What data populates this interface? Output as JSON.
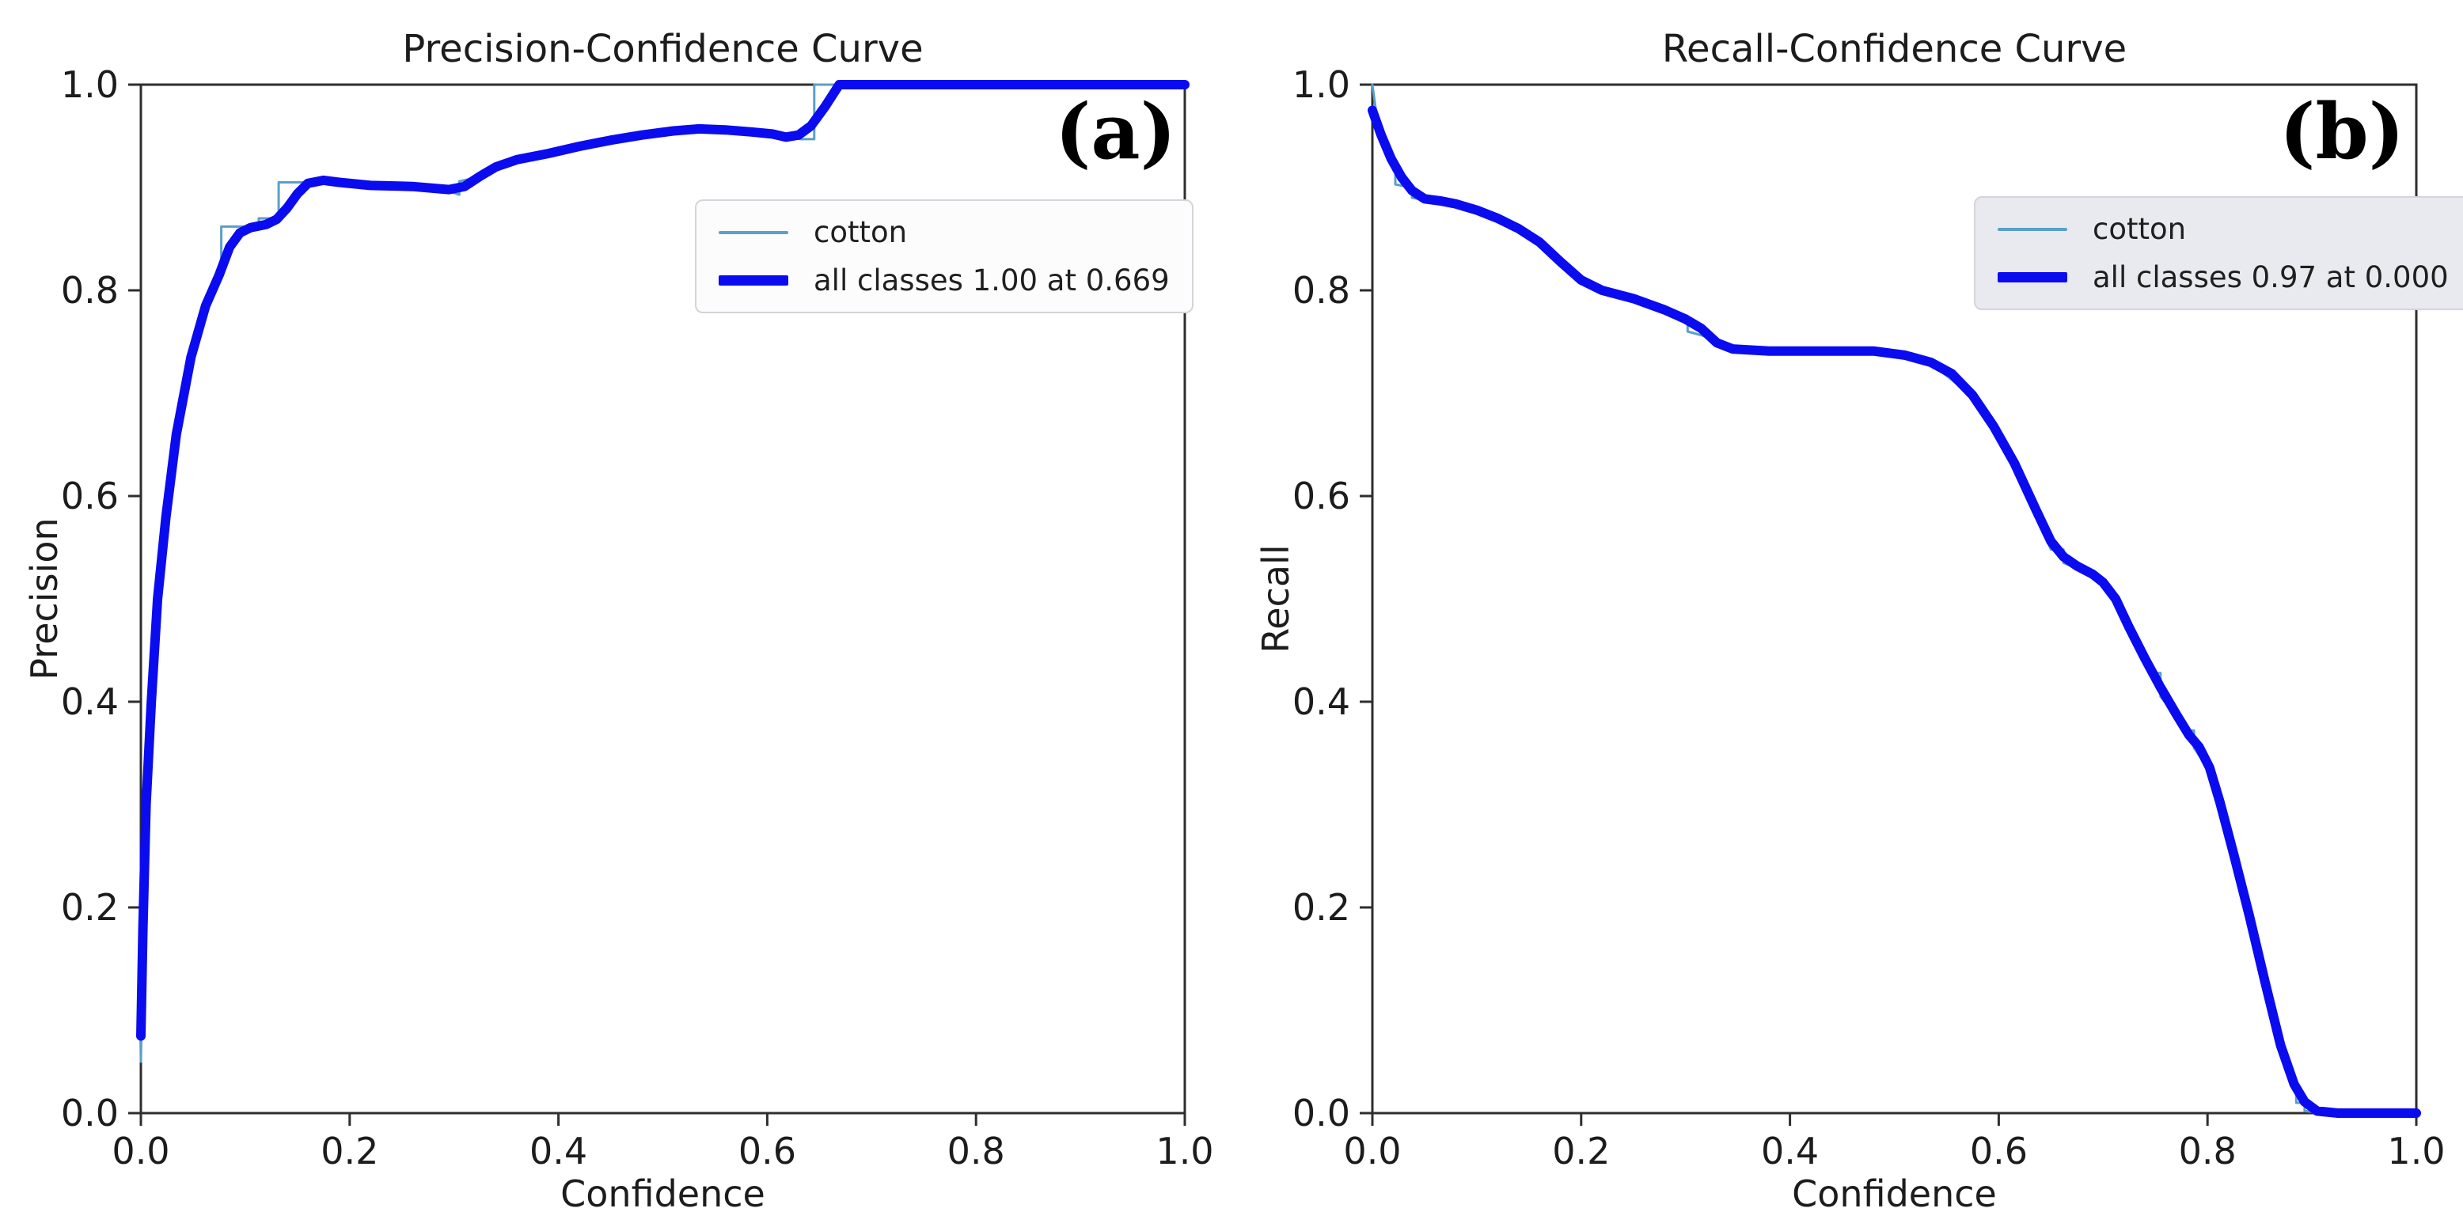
{
  "figure": {
    "background": "#ffffff"
  },
  "colors": {
    "all_classes_line": "#0b0bf0",
    "class_line": "#5aa0c8",
    "spine": "#2e2e2e",
    "legend_bg_a": "#fcfcfc",
    "legend_bg_b": "#e9e9f0",
    "legend_border": "#d4d4da"
  },
  "chart_data": [
    {
      "type": "line",
      "panel_label": "(a)",
      "title": "Precision-Confidence Curve",
      "xlabel": "Confidence",
      "ylabel": "Precision",
      "xlim": [
        0.0,
        1.0
      ],
      "ylim": [
        0.0,
        1.0
      ],
      "grid": false,
      "x_ticks": [
        0.0,
        0.2,
        0.4,
        0.6,
        0.8,
        1.0
      ],
      "x_tick_labels": [
        "0.0",
        "0.2",
        "0.4",
        "0.6",
        "0.8",
        "1.0"
      ],
      "y_ticks": [
        0.0,
        0.2,
        0.4,
        0.6,
        0.8,
        1.0
      ],
      "y_tick_labels": [
        "0.0",
        "0.2",
        "0.4",
        "0.6",
        "0.8",
        "1.0"
      ],
      "legend": {
        "position": "upper-right-inset",
        "bg": "#fcfcfc",
        "border": "#d4d4da",
        "items": [
          {
            "label": "cotton",
            "series": 0
          },
          {
            "label": "all classes 1.00 at 0.669",
            "series": 1
          }
        ]
      },
      "series": [
        {
          "name": "cotton",
          "color": "#5aa0c8",
          "style": "thin",
          "points": [
            [
              0.0,
              0.05
            ],
            [
              0.003,
              0.25
            ],
            [
              0.006,
              0.37
            ],
            [
              0.012,
              0.46
            ],
            [
              0.02,
              0.55
            ],
            [
              0.03,
              0.63
            ],
            [
              0.045,
              0.71
            ],
            [
              0.06,
              0.77
            ],
            [
              0.072,
              0.805
            ],
            [
              0.077,
              0.818
            ],
            [
              0.077,
              0.862
            ],
            [
              0.113,
              0.862
            ],
            [
              0.113,
              0.87
            ],
            [
              0.132,
              0.87
            ],
            [
              0.132,
              0.905
            ],
            [
              0.155,
              0.905
            ],
            [
              0.165,
              0.907
            ],
            [
              0.19,
              0.904
            ],
            [
              0.24,
              0.901
            ],
            [
              0.29,
              0.898
            ],
            [
              0.305,
              0.893
            ],
            [
              0.305,
              0.906
            ],
            [
              0.318,
              0.909
            ],
            [
              0.33,
              0.916
            ],
            [
              0.36,
              0.927
            ],
            [
              0.4,
              0.936
            ],
            [
              0.45,
              0.947
            ],
            [
              0.5,
              0.955
            ],
            [
              0.535,
              0.957
            ],
            [
              0.58,
              0.955
            ],
            [
              0.61,
              0.95
            ],
            [
              0.632,
              0.947
            ],
            [
              0.645,
              0.947
            ],
            [
              0.645,
              1.0
            ],
            [
              1.0,
              1.0
            ]
          ]
        },
        {
          "name": "all classes",
          "color": "#0b0bf0",
          "style": "thick",
          "points": [
            [
              0.0,
              0.075
            ],
            [
              0.002,
              0.18
            ],
            [
              0.005,
              0.3
            ],
            [
              0.01,
              0.4
            ],
            [
              0.016,
              0.5
            ],
            [
              0.024,
              0.58
            ],
            [
              0.034,
              0.66
            ],
            [
              0.048,
              0.735
            ],
            [
              0.062,
              0.785
            ],
            [
              0.075,
              0.815
            ],
            [
              0.085,
              0.842
            ],
            [
              0.095,
              0.856
            ],
            [
              0.105,
              0.861
            ],
            [
              0.12,
              0.864
            ],
            [
              0.13,
              0.869
            ],
            [
              0.14,
              0.88
            ],
            [
              0.15,
              0.894
            ],
            [
              0.16,
              0.904
            ],
            [
              0.175,
              0.907
            ],
            [
              0.19,
              0.905
            ],
            [
              0.22,
              0.902
            ],
            [
              0.26,
              0.901
            ],
            [
              0.295,
              0.898
            ],
            [
              0.31,
              0.901
            ],
            [
              0.325,
              0.911
            ],
            [
              0.34,
              0.92
            ],
            [
              0.36,
              0.927
            ],
            [
              0.39,
              0.933
            ],
            [
              0.42,
              0.94
            ],
            [
              0.45,
              0.946
            ],
            [
              0.48,
              0.951
            ],
            [
              0.51,
              0.955
            ],
            [
              0.535,
              0.957
            ],
            [
              0.56,
              0.956
            ],
            [
              0.585,
              0.954
            ],
            [
              0.605,
              0.952
            ],
            [
              0.618,
              0.949
            ],
            [
              0.63,
              0.951
            ],
            [
              0.642,
              0.96
            ],
            [
              0.655,
              0.978
            ],
            [
              0.669,
              1.0
            ],
            [
              1.0,
              1.0
            ]
          ]
        }
      ]
    },
    {
      "type": "line",
      "panel_label": "(b)",
      "title": "Recall-Confidence Curve",
      "xlabel": "Confidence",
      "ylabel": "Recall",
      "xlim": [
        0.0,
        1.0
      ],
      "ylim": [
        0.0,
        1.0
      ],
      "grid": false,
      "x_ticks": [
        0.0,
        0.2,
        0.4,
        0.6,
        0.8,
        1.0
      ],
      "x_tick_labels": [
        "0.0",
        "0.2",
        "0.4",
        "0.6",
        "0.8",
        "1.0"
      ],
      "y_ticks": [
        0.0,
        0.2,
        0.4,
        0.6,
        0.8,
        1.0
      ],
      "y_tick_labels": [
        "0.0",
        "0.2",
        "0.4",
        "0.6",
        "0.8",
        "1.0"
      ],
      "legend": {
        "position": "upper-right-inset",
        "bg": "#e9e9f0",
        "border": "#d4d4da",
        "items": [
          {
            "label": "cotton",
            "series": 0
          },
          {
            "label": "all classes 0.97 at 0.000",
            "series": 1
          }
        ]
      },
      "series": [
        {
          "name": "cotton",
          "color": "#5aa0c8",
          "style": "thin",
          "points": [
            [
              0.0,
              1.0
            ],
            [
              0.004,
              0.97
            ],
            [
              0.008,
              0.955
            ],
            [
              0.018,
              0.932
            ],
            [
              0.022,
              0.915
            ],
            [
              0.022,
              0.903
            ],
            [
              0.038,
              0.9
            ],
            [
              0.038,
              0.89
            ],
            [
              0.05,
              0.888
            ],
            [
              0.08,
              0.884
            ],
            [
              0.12,
              0.87
            ],
            [
              0.16,
              0.846
            ],
            [
              0.19,
              0.818
            ],
            [
              0.22,
              0.8
            ],
            [
              0.26,
              0.789
            ],
            [
              0.295,
              0.775
            ],
            [
              0.302,
              0.77
            ],
            [
              0.302,
              0.76
            ],
            [
              0.32,
              0.755
            ],
            [
              0.332,
              0.747
            ],
            [
              0.345,
              0.74
            ],
            [
              0.38,
              0.741
            ],
            [
              0.48,
              0.741
            ],
            [
              0.535,
              0.729
            ],
            [
              0.575,
              0.697
            ],
            [
              0.615,
              0.63
            ],
            [
              0.645,
              0.56
            ],
            [
              0.65,
              0.548
            ],
            [
              0.662,
              0.548
            ],
            [
              0.662,
              0.535
            ],
            [
              0.68,
              0.528
            ],
            [
              0.7,
              0.515
            ],
            [
              0.725,
              0.47
            ],
            [
              0.748,
              0.428
            ],
            [
              0.755,
              0.428
            ],
            [
              0.755,
              0.405
            ],
            [
              0.77,
              0.386
            ],
            [
              0.78,
              0.372
            ],
            [
              0.787,
              0.372
            ],
            [
              0.787,
              0.355
            ],
            [
              0.802,
              0.333
            ],
            [
              0.825,
              0.25
            ],
            [
              0.845,
              0.175
            ],
            [
              0.862,
              0.098
            ],
            [
              0.875,
              0.05
            ],
            [
              0.885,
              0.025
            ],
            [
              0.885,
              0.01
            ],
            [
              0.893,
              0.01
            ],
            [
              0.893,
              0.002
            ],
            [
              0.915,
              0.0
            ],
            [
              1.0,
              0.0
            ]
          ]
        },
        {
          "name": "all classes",
          "color": "#0b0bf0",
          "style": "thick",
          "points": [
            [
              0.0,
              0.975
            ],
            [
              0.008,
              0.952
            ],
            [
              0.018,
              0.928
            ],
            [
              0.028,
              0.91
            ],
            [
              0.038,
              0.897
            ],
            [
              0.05,
              0.889
            ],
            [
              0.065,
              0.887
            ],
            [
              0.08,
              0.884
            ],
            [
              0.1,
              0.878
            ],
            [
              0.12,
              0.87
            ],
            [
              0.14,
              0.86
            ],
            [
              0.16,
              0.847
            ],
            [
              0.18,
              0.828
            ],
            [
              0.2,
              0.81
            ],
            [
              0.22,
              0.8
            ],
            [
              0.25,
              0.792
            ],
            [
              0.28,
              0.781
            ],
            [
              0.3,
              0.772
            ],
            [
              0.315,
              0.763
            ],
            [
              0.33,
              0.749
            ],
            [
              0.345,
              0.743
            ],
            [
              0.38,
              0.741
            ],
            [
              0.44,
              0.741
            ],
            [
              0.48,
              0.741
            ],
            [
              0.51,
              0.737
            ],
            [
              0.535,
              0.73
            ],
            [
              0.555,
              0.719
            ],
            [
              0.575,
              0.698
            ],
            [
              0.595,
              0.668
            ],
            [
              0.615,
              0.632
            ],
            [
              0.635,
              0.588
            ],
            [
              0.65,
              0.556
            ],
            [
              0.662,
              0.541
            ],
            [
              0.675,
              0.532
            ],
            [
              0.69,
              0.524
            ],
            [
              0.7,
              0.516
            ],
            [
              0.712,
              0.5
            ],
            [
              0.725,
              0.472
            ],
            [
              0.74,
              0.442
            ],
            [
              0.755,
              0.414
            ],
            [
              0.77,
              0.388
            ],
            [
              0.782,
              0.368
            ],
            [
              0.792,
              0.356
            ],
            [
              0.802,
              0.336
            ],
            [
              0.812,
              0.302
            ],
            [
              0.825,
              0.252
            ],
            [
              0.84,
              0.192
            ],
            [
              0.855,
              0.128
            ],
            [
              0.87,
              0.066
            ],
            [
              0.883,
              0.028
            ],
            [
              0.893,
              0.011
            ],
            [
              0.905,
              0.002
            ],
            [
              0.925,
              0.0
            ],
            [
              1.0,
              0.0
            ]
          ]
        }
      ]
    }
  ]
}
